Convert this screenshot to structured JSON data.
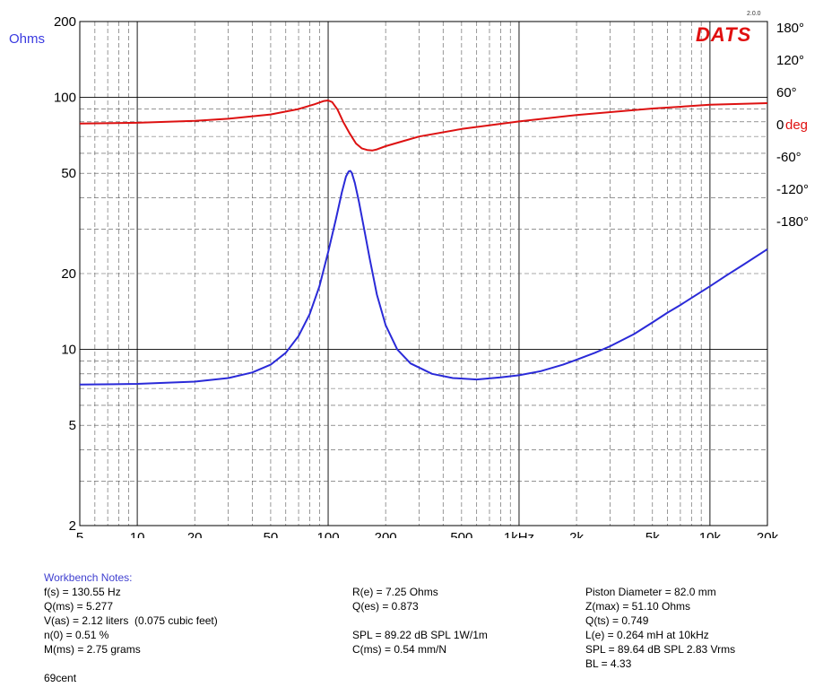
{
  "brand": {
    "name": "DATS",
    "version": "2.0.0"
  },
  "chart_data": {
    "type": "line",
    "xscale": "log",
    "xlim": [
      5,
      20000
    ],
    "x_ticks": [
      5,
      10,
      20,
      50,
      100,
      200,
      500,
      1000,
      2000,
      5000,
      10000,
      20000
    ],
    "x_tick_labels": [
      "5",
      "10",
      "20",
      "50",
      "100",
      "200",
      "500",
      "1kHz",
      "2k",
      "5k",
      "10k",
      "20k"
    ],
    "y_left": {
      "label": "Ohms",
      "scale": "log",
      "lim": [
        2,
        200
      ],
      "ticks": [
        2,
        5,
        10,
        20,
        50,
        100,
        200
      ],
      "tick_labels": [
        "2",
        "5",
        "10",
        "20",
        "50",
        "100",
        "200"
      ]
    },
    "y_right": {
      "label": "deg",
      "scale": "linear",
      "ticks": [
        180,
        120,
        60,
        0,
        -60,
        -120,
        -180
      ],
      "tick_labels": [
        "180°",
        "120°",
        "60°",
        "0",
        "-60°",
        "-120°",
        "-180°"
      ]
    },
    "grid": true,
    "series": [
      {
        "axis": "left",
        "color": "#2a2ad8",
        "x": [
          5,
          10,
          20,
          30,
          40,
          50,
          60,
          70,
          80,
          90,
          100,
          110,
          118,
          124,
          128,
          130.55,
          133,
          138,
          145,
          155,
          165,
          180,
          200,
          230,
          270,
          350,
          450,
          600,
          800,
          1000,
          1300,
          1700,
          2000,
          2500,
          3000,
          4000,
          5000,
          6000,
          7000,
          8000,
          10000,
          12000,
          15000,
          20000
        ],
        "y": [
          7.25,
          7.3,
          7.45,
          7.7,
          8.1,
          8.7,
          9.7,
          11.3,
          13.8,
          17.8,
          24.3,
          33.0,
          42.0,
          48.5,
          50.8,
          51.1,
          50.2,
          45.8,
          38.5,
          29.5,
          23.0,
          16.5,
          12.5,
          10.0,
          8.8,
          8.0,
          7.7,
          7.6,
          7.75,
          7.9,
          8.2,
          8.7,
          9.1,
          9.7,
          10.3,
          11.5,
          12.8,
          14.0,
          15.0,
          16.0,
          17.8,
          19.5,
          21.7,
          25.0
        ]
      },
      {
        "axis": "right",
        "color": "#dd1111",
        "x": [
          5,
          10,
          20,
          30,
          50,
          70,
          85,
          95,
          100,
          105,
          112,
          120,
          130,
          140,
          150,
          160,
          170,
          180,
          200,
          250,
          300,
          500,
          1000,
          2000,
          5000,
          10000,
          20000
        ],
        "y": [
          2.0,
          3.5,
          7.0,
          11.0,
          19.0,
          29.0,
          38.0,
          44.0,
          45.0,
          42.0,
          28.0,
          5.0,
          -17.0,
          -35.0,
          -44.0,
          -47.0,
          -48.0,
          -46.0,
          -40.0,
          -30.0,
          -22.0,
          -8.0,
          6.0,
          18.0,
          30.0,
          37.0,
          40.0
        ]
      }
    ]
  },
  "notes": {
    "heading": "Workbench Notes:",
    "col1": [
      "f(s) = 130.55 Hz",
      "Q(ms) = 5.277",
      "V(as) = 2.12 liters  (0.075 cubic feet)",
      "n(0) = 0.51 %",
      "M(ms) = 2.75 grams"
    ],
    "col2": [
      "R(e) = 7.25 Ohms",
      "Q(es) = 0.873",
      "",
      "SPL = 89.22 dB SPL 1W/1m",
      "C(ms) = 0.54 mm/N"
    ],
    "col3": [
      "Piston Diameter = 82.0 mm",
      "Z(max) = 51.10 Ohms",
      "Q(ts) = 0.749",
      "L(e) = 0.264 mH at 10kHz",
      "SPL = 89.64 dB SPL 2.83 Vrms",
      "BL = 4.33"
    ],
    "footer": "69cent"
  }
}
